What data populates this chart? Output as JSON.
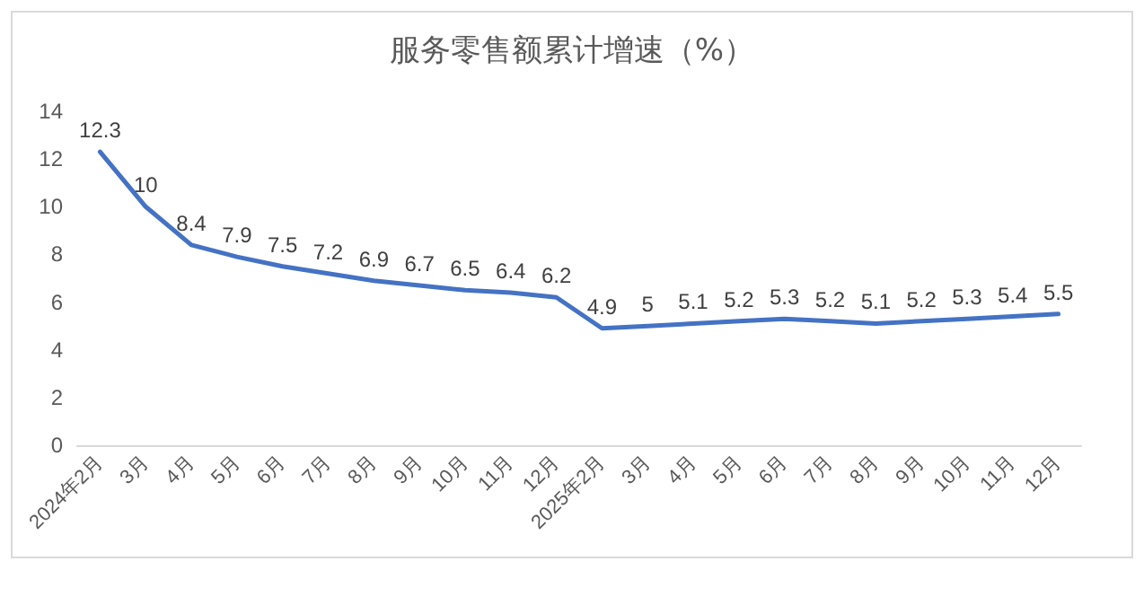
{
  "chart_data": {
    "type": "line",
    "title": "服务零售额累计增速（%）",
    "categories": [
      "2024年2月",
      "3月",
      "4月",
      "5月",
      "6月",
      "7月",
      "8月",
      "9月",
      "10月",
      "11月",
      "12月",
      "2025年2月",
      "3月",
      "4月",
      "5月",
      "6月",
      "7月",
      "8月",
      "9月",
      "10月",
      "11月",
      "12月"
    ],
    "series": [
      {
        "color": "#4472c4",
        "values": [
          12.3,
          10,
          8.4,
          7.9,
          7.5,
          7.2,
          6.9,
          6.7,
          6.5,
          6.4,
          6.2,
          4.9,
          5,
          5.1,
          5.2,
          5.3,
          5.2,
          5.1,
          5.2,
          5.3,
          5.4,
          5.5
        ]
      }
    ],
    "ylim": [
      0,
      14
    ],
    "yticks": [
      0,
      2,
      4,
      6,
      8,
      10,
      12,
      14
    ],
    "grid": false,
    "marker": "none",
    "line_style": "solid",
    "data_labels": true
  }
}
